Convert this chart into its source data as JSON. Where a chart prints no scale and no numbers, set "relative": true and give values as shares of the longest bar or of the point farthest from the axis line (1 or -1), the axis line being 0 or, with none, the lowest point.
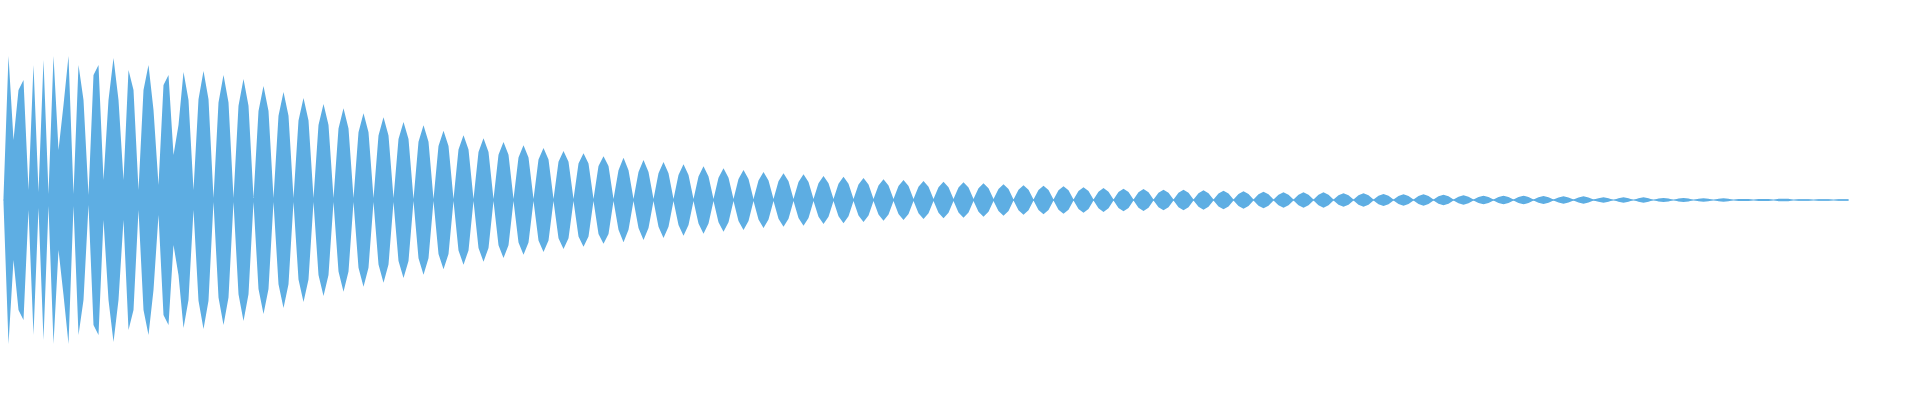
{
  "chart_data": {
    "type": "area",
    "relative": true,
    "categories": [
      null,
      null,
      null,
      null,
      null,
      null,
      null,
      null,
      null,
      null,
      null,
      null,
      null,
      null,
      null,
      null,
      null,
      null,
      null,
      null,
      null,
      null,
      null,
      null,
      null,
      null,
      null,
      null,
      null,
      null,
      null,
      null,
      null,
      null,
      null,
      null,
      null,
      null,
      null,
      null,
      null,
      null,
      null,
      null,
      null,
      null,
      null,
      null,
      null,
      null,
      null,
      null,
      null,
      null,
      null,
      null,
      null,
      null,
      null,
      null,
      null,
      null,
      null,
      null,
      null,
      null,
      null,
      null,
      null,
      null,
      null,
      null,
      null,
      null,
      null,
      null,
      null,
      null,
      null,
      null,
      null,
      null,
      null,
      null,
      null,
      null,
      null,
      null,
      null,
      null,
      null,
      null,
      null,
      null,
      null,
      null,
      null,
      null,
      null,
      null,
      null,
      null,
      null,
      null,
      null,
      null,
      null,
      null,
      null,
      null,
      null,
      null,
      null,
      null,
      null,
      null,
      null,
      null,
      null,
      null,
      null,
      null,
      null,
      null,
      null,
      null,
      null,
      null,
      null,
      null,
      null,
      null,
      null,
      null,
      null,
      null,
      null,
      null,
      null,
      null,
      null,
      null,
      null,
      null,
      null,
      null,
      null,
      null,
      null,
      null,
      null,
      null,
      null,
      null,
      null,
      null,
      null,
      null,
      null,
      null,
      null,
      null,
      null,
      null,
      null,
      null,
      null,
      null,
      null,
      null,
      null,
      null,
      null,
      null,
      null,
      null,
      null,
      null,
      null,
      null,
      null,
      null,
      null,
      null,
      null,
      null,
      null,
      null,
      null,
      null,
      null,
      null,
      null,
      null,
      null,
      null,
      null,
      null,
      null,
      null,
      null,
      null,
      null,
      null,
      null,
      null,
      null,
      null,
      null,
      null,
      null,
      null,
      null,
      null,
      null,
      null,
      null,
      null,
      null,
      null,
      null,
      null,
      null,
      null,
      null,
      null,
      null,
      null,
      null,
      null,
      null,
      null,
      null,
      null,
      null,
      null,
      null,
      null,
      null,
      null,
      null,
      null,
      null,
      null,
      null,
      null,
      null,
      null,
      null,
      null,
      null,
      null,
      null,
      null,
      null,
      null,
      null,
      null,
      null,
      null,
      null,
      null,
      null,
      null,
      null,
      null,
      null,
      null,
      null,
      null,
      null,
      null,
      null,
      null,
      null,
      null,
      null,
      null,
      null,
      null,
      null,
      null,
      null,
      null,
      null,
      null,
      null,
      null,
      null,
      null,
      null,
      null,
      null,
      null,
      null,
      null,
      null,
      null,
      null,
      null,
      null,
      null,
      null,
      null,
      null,
      null,
      null,
      null,
      null,
      null,
      null,
      null,
      null,
      null,
      null,
      null,
      null,
      null,
      null,
      null,
      null,
      null,
      null,
      null,
      null,
      null,
      null,
      null,
      null,
      null,
      null,
      null,
      null,
      null,
      null,
      null,
      null,
      null,
      null,
      null,
      null,
      null,
      null,
      null,
      null,
      null,
      null,
      null,
      null,
      null,
      null,
      null,
      null,
      null,
      null,
      null,
      null,
      null,
      null,
      null,
      null,
      null,
      null,
      null,
      null,
      null,
      null,
      null,
      null,
      null
    ],
    "series": [
      {
        "color": "#5dade2",
        "values": [
          0.021,
          1,
          0.417,
          0.764,
          0.833,
          0.069,
          0.938,
          0.056,
          0.972,
          0.042,
          1,
          0.347,
          0.66,
          1,
          0.042,
          0.938,
          0.694,
          0.035,
          0.868,
          0.938,
          0.139,
          0.694,
          0.986,
          0.694,
          0.139,
          0.903,
          0.764,
          0.069,
          0.764,
          0.938,
          0.625,
          0.104,
          0.799,
          0.868,
          0.313,
          0.521,
          0.889,
          0.694,
          0.069,
          0.699,
          0.896,
          0.699,
          0.014,
          0.677,
          0.868,
          0.677,
          0.014,
          0.655,
          0.84,
          0.655,
          0.014,
          0.618,
          0.792,
          0.618,
          0.014,
          0.585,
          0.75,
          0.585,
          0.014,
          0.552,
          0.708,
          0.552,
          0.014,
          0.52,
          0.667,
          0.52,
          0.014,
          0.497,
          0.637,
          0.497,
          0.014,
          0.47,
          0.602,
          0.47,
          0.014,
          0.448,
          0.574,
          0.448,
          0.014,
          0.423,
          0.542,
          0.423,
          0.007,
          0.405,
          0.519,
          0.405,
          0.007,
          0.375,
          0.481,
          0.375,
          0.007,
          0.35,
          0.449,
          0.35,
          0.007,
          0.334,
          0.428,
          0.334,
          0.007,
          0.314,
          0.403,
          0.314,
          0.007,
          0.296,
          0.38,
          0.296,
          0.007,
          0.282,
          0.361,
          0.282,
          0.007,
          0.265,
          0.34,
          0.265,
          0.007,
          0.253,
          0.324,
          0.253,
          0.007,
          0.236,
          0.303,
          0.236,
          0.007,
          0.206,
          0.294,
          0.206,
          0.007,
          0.195,
          0.278,
          0.195,
          0.007,
          0.185,
          0.264,
          0.185,
          0.007,
          0.174,
          0.248,
          0.174,
          0.007,
          0.164,
          0.234,
          0.164,
          0.007,
          0.154,
          0.22,
          0.154,
          0.007,
          0.146,
          0.208,
          0.146,
          0.007,
          0.136,
          0.194,
          0.136,
          0.007,
          0.13,
          0.185,
          0.13,
          0.007,
          0.125,
          0.178,
          0.125,
          0.007,
          0.117,
          0.167,
          0.117,
          0.007,
          0.113,
          0.162,
          0.113,
          0.007,
          0.107,
          0.153,
          0.107,
          0.007,
          0.101,
          0.144,
          0.101,
          0.007,
          0.097,
          0.139,
          0.097,
          0.007,
          0.092,
          0.132,
          0.092,
          0.007,
          0.089,
          0.127,
          0.089,
          0.007,
          0.086,
          0.123,
          0.086,
          0.007,
          0.081,
          0.116,
          0.081,
          0.007,
          0.076,
          0.109,
          0.076,
          0.003,
          0.071,
          0.102,
          0.071,
          0.003,
          0.069,
          0.099,
          0.069,
          0.003,
          0.067,
          0.095,
          0.067,
          0.003,
          0.062,
          0.088,
          0.062,
          0.003,
          0.058,
          0.083,
          0.058,
          0.003,
          0.055,
          0.078,
          0.055,
          0.003,
          0.053,
          0.076,
          0.053,
          0.003,
          0.05,
          0.072,
          0.05,
          0.003,
          0.05,
          0.072,
          0.05,
          0.003,
          0.047,
          0.067,
          0.047,
          0.003,
          0.045,
          0.065,
          0.045,
          0.003,
          0.042,
          0.06,
          0.042,
          0.003,
          0.04,
          0.058,
          0.04,
          0.003,
          0.037,
          0.053,
          0.037,
          0.003,
          0.037,
          0.053,
          0.037,
          0.003,
          0.037,
          0.053,
          0.037,
          0.003,
          0.033,
          0.047,
          0.033,
          0.003,
          0.033,
          0.047,
          0.033,
          0.003,
          0.029,
          0.042,
          0.029,
          0.003,
          0.028,
          0.04,
          0.028,
          0.003,
          0.028,
          0.04,
          0.028,
          0.003,
          0.026,
          0.037,
          0.026,
          0.003,
          0.023,
          0.033,
          0.023,
          0.003,
          0.021,
          0.03,
          0.021,
          0.003,
          0.021,
          0.03,
          0.021,
          0.003,
          0.021,
          0.03,
          0.021,
          0.003,
          0.019,
          0.028,
          0.019,
          0.003,
          0.018,
          0.026,
          0.018,
          0.003,
          0.018,
          0.026,
          0.018,
          0.003,
          0.013,
          0.019,
          0.013,
          0,
          0.013,
          0.019,
          0.013,
          0,
          0.013,
          0.019,
          0.013,
          0,
          0.01,
          0.014,
          0.01,
          0,
          0.01,
          0.014,
          0.01,
          0,
          0.008,
          0.012,
          0.008,
          0,
          0.008,
          0.012,
          0.008,
          0,
          0.007,
          0.007,
          0.007,
          0,
          0.007,
          0.007,
          0.007,
          0,
          0.009,
          0.009,
          0.009,
          0,
          0.005,
          0.005,
          0.005,
          0,
          0.005,
          0.005,
          0.005,
          0,
          0.005,
          0.005,
          0.005
        ]
      },
      {
        "color": "#5eaee3",
        "values": [
          -0.021,
          -1,
          -0.417,
          -0.764,
          -0.833,
          -0.069,
          -0.938,
          -0.056,
          -0.972,
          -0.042,
          -1,
          -0.347,
          -0.66,
          -1,
          -0.042,
          -0.938,
          -0.694,
          -0.035,
          -0.868,
          -0.938,
          -0.139,
          -0.694,
          -0.986,
          -0.694,
          -0.139,
          -0.903,
          -0.764,
          -0.069,
          -0.764,
          -0.938,
          -0.625,
          -0.104,
          -0.799,
          -0.868,
          -0.313,
          -0.521,
          -0.889,
          -0.694,
          -0.069,
          -0.699,
          -0.896,
          -0.699,
          -0.014,
          -0.677,
          -0.868,
          -0.677,
          -0.014,
          -0.655,
          -0.84,
          -0.655,
          -0.014,
          -0.618,
          -0.792,
          -0.618,
          -0.014,
          -0.585,
          -0.75,
          -0.585,
          -0.014,
          -0.552,
          -0.708,
          -0.552,
          -0.014,
          -0.52,
          -0.667,
          -0.52,
          -0.014,
          -0.497,
          -0.637,
          -0.497,
          -0.014,
          -0.47,
          -0.602,
          -0.47,
          -0.014,
          -0.448,
          -0.574,
          -0.448,
          -0.014,
          -0.423,
          -0.542,
          -0.423,
          -0.007,
          -0.405,
          -0.519,
          -0.405,
          -0.007,
          -0.375,
          -0.481,
          -0.375,
          -0.007,
          -0.35,
          -0.449,
          -0.35,
          -0.007,
          -0.334,
          -0.428,
          -0.334,
          -0.007,
          -0.314,
          -0.403,
          -0.314,
          -0.007,
          -0.296,
          -0.38,
          -0.296,
          -0.007,
          -0.282,
          -0.361,
          -0.282,
          -0.007,
          -0.265,
          -0.34,
          -0.265,
          -0.007,
          -0.253,
          -0.324,
          -0.253,
          -0.007,
          -0.236,
          -0.303,
          -0.236,
          -0.007,
          -0.206,
          -0.294,
          -0.206,
          -0.007,
          -0.195,
          -0.278,
          -0.195,
          -0.007,
          -0.185,
          -0.264,
          -0.185,
          -0.007,
          -0.174,
          -0.248,
          -0.174,
          -0.007,
          -0.164,
          -0.234,
          -0.164,
          -0.007,
          -0.154,
          -0.22,
          -0.154,
          -0.007,
          -0.146,
          -0.208,
          -0.146,
          -0.007,
          -0.136,
          -0.194,
          -0.136,
          -0.007,
          -0.13,
          -0.185,
          -0.13,
          -0.007,
          -0.125,
          -0.178,
          -0.125,
          -0.007,
          -0.117,
          -0.167,
          -0.117,
          -0.007,
          -0.113,
          -0.162,
          -0.113,
          -0.007,
          -0.107,
          -0.153,
          -0.107,
          -0.007,
          -0.101,
          -0.144,
          -0.101,
          -0.007,
          -0.097,
          -0.139,
          -0.097,
          -0.007,
          -0.092,
          -0.132,
          -0.092,
          -0.007,
          -0.089,
          -0.127,
          -0.089,
          -0.007,
          -0.086,
          -0.123,
          -0.086,
          -0.007,
          -0.081,
          -0.116,
          -0.081,
          -0.007,
          -0.076,
          -0.109,
          -0.076,
          -0.003,
          -0.071,
          -0.102,
          -0.071,
          -0.003,
          -0.069,
          -0.099,
          -0.069,
          -0.003,
          -0.067,
          -0.095,
          -0.067,
          -0.003,
          -0.062,
          -0.088,
          -0.062,
          -0.003,
          -0.058,
          -0.083,
          -0.058,
          -0.003,
          -0.055,
          -0.078,
          -0.055,
          -0.003,
          -0.053,
          -0.076,
          -0.053,
          -0.003,
          -0.05,
          -0.072,
          -0.05,
          -0.003,
          -0.05,
          -0.072,
          -0.05,
          -0.003,
          -0.047,
          -0.067,
          -0.047,
          -0.003,
          -0.045,
          -0.065,
          -0.045,
          -0.003,
          -0.042,
          -0.06,
          -0.042,
          -0.003,
          -0.04,
          -0.058,
          -0.04,
          -0.003,
          -0.037,
          -0.053,
          -0.037,
          -0.003,
          -0.037,
          -0.053,
          -0.037,
          -0.003,
          -0.037,
          -0.053,
          -0.037,
          -0.003,
          -0.033,
          -0.047,
          -0.033,
          -0.003,
          -0.033,
          -0.047,
          -0.033,
          -0.003,
          -0.029,
          -0.042,
          -0.029,
          -0.003,
          -0.028,
          -0.04,
          -0.028,
          -0.003,
          -0.028,
          -0.04,
          -0.028,
          -0.003,
          -0.026,
          -0.037,
          -0.026,
          -0.003,
          -0.023,
          -0.033,
          -0.023,
          -0.003,
          -0.021,
          -0.03,
          -0.021,
          -0.003,
          -0.021,
          -0.03,
          -0.021,
          -0.003,
          -0.021,
          -0.03,
          -0.021,
          -0.003,
          -0.019,
          -0.028,
          -0.019,
          -0.003,
          -0.018,
          -0.026,
          -0.018,
          -0.003,
          -0.018,
          -0.026,
          -0.018,
          -0.003,
          -0.013,
          -0.019,
          -0.013,
          0,
          -0.013,
          -0.019,
          -0.013,
          0,
          -0.013,
          -0.019,
          -0.013,
          0,
          -0.01,
          -0.014,
          -0.01,
          0,
          -0.01,
          -0.014,
          -0.01,
          0,
          -0.008,
          -0.012,
          -0.008,
          0,
          -0.008,
          -0.012,
          -0.008,
          0,
          -0.007,
          -0.007,
          -0.007,
          0,
          -0.007,
          -0.007,
          -0.007,
          0,
          -0.009,
          -0.009,
          -0.009,
          0,
          -0.005,
          -0.005,
          -0.005,
          0,
          -0.005,
          -0.005,
          -0.005,
          0,
          -0.005,
          -0.005,
          -0.005
        ]
      }
    ]
  }
}
